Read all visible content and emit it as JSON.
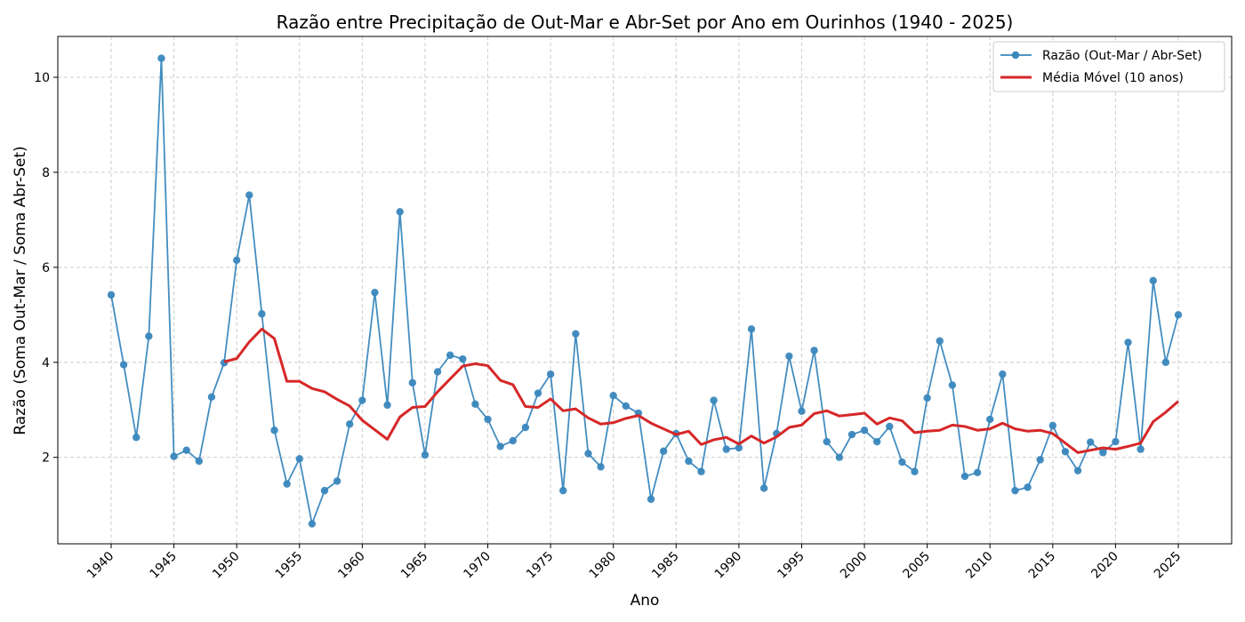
{
  "chart_data": {
    "type": "line",
    "title": "Razão entre Precipitação de Out-Mar e Abr-Set por Ano em Ourinhos (1940 - 2025)",
    "xlabel": "Ano",
    "ylabel": "Razão (Soma Out-Mar / Soma Abr-Set)",
    "xlim": [
      1935.75,
      2029.25
    ],
    "ylim": [
      0.18,
      10.86
    ],
    "x_ticks": [
      1940,
      1945,
      1950,
      1955,
      1960,
      1965,
      1970,
      1975,
      1980,
      1985,
      1990,
      1995,
      2000,
      2005,
      2010,
      2015,
      2020,
      2025
    ],
    "y_ticks": [
      2,
      4,
      6,
      8,
      10
    ],
    "grid": true,
    "legend_position": "top-right",
    "x": [
      1940,
      1941,
      1942,
      1943,
      1944,
      1945,
      1946,
      1947,
      1948,
      1949,
      1950,
      1951,
      1952,
      1953,
      1954,
      1955,
      1956,
      1957,
      1958,
      1959,
      1960,
      1961,
      1962,
      1963,
      1964,
      1965,
      1966,
      1967,
      1968,
      1969,
      1970,
      1971,
      1972,
      1973,
      1974,
      1975,
      1976,
      1977,
      1978,
      1979,
      1980,
      1981,
      1982,
      1983,
      1984,
      1985,
      1986,
      1987,
      1988,
      1989,
      1990,
      1991,
      1992,
      1993,
      1994,
      1995,
      1996,
      1997,
      1998,
      1999,
      2000,
      2001,
      2002,
      2003,
      2004,
      2005,
      2006,
      2007,
      2008,
      2009,
      2010,
      2011,
      2012,
      2013,
      2014,
      2015,
      2016,
      2017,
      2018,
      2019,
      2020,
      2021,
      2022,
      2023,
      2024,
      2025
    ],
    "series": [
      {
        "name": "Razão (Out-Mar / Abr-Set)",
        "color": "#3a87bd",
        "marker": "circle",
        "values": [
          5.42,
          3.95,
          2.42,
          4.55,
          10.4,
          2.02,
          2.15,
          1.92,
          3.27,
          3.99,
          6.15,
          7.52,
          5.02,
          2.57,
          1.44,
          1.97,
          0.6,
          1.3,
          1.5,
          2.7,
          3.2,
          5.47,
          3.1,
          7.17,
          3.57,
          2.05,
          3.8,
          4.15,
          4.07,
          3.12,
          2.8,
          2.23,
          2.35,
          2.63,
          3.35,
          3.75,
          1.3,
          4.6,
          2.08,
          1.8,
          3.3,
          3.08,
          2.93,
          1.12,
          2.13,
          2.5,
          1.92,
          1.7,
          3.2,
          2.17,
          2.2,
          4.7,
          1.35,
          2.5,
          4.13,
          2.97,
          4.25,
          2.33,
          2.0,
          2.48,
          2.57,
          2.33,
          2.65,
          1.9,
          1.7,
          3.25,
          4.45,
          3.52,
          1.6,
          1.68,
          2.8,
          3.75,
          1.3,
          1.37,
          1.95,
          2.67,
          2.12,
          1.72,
          2.32,
          2.1,
          2.33,
          4.42,
          2.17,
          5.72,
          4.0,
          5.0
        ]
      },
      {
        "name": "Média Móvel (10 anos)",
        "color": "#d62728",
        "x": [
          1949,
          1950,
          1951,
          1952,
          1953,
          1954,
          1955,
          1956,
          1957,
          1958,
          1959,
          1960,
          1961,
          1962,
          1963,
          1964,
          1965,
          1966,
          1967,
          1968,
          1969,
          1970,
          1971,
          1972,
          1973,
          1974,
          1975,
          1976,
          1977,
          1978,
          1979,
          1980,
          1981,
          1982,
          1983,
          1984,
          1985,
          1986,
          1987,
          1988,
          1989,
          1990,
          1991,
          1992,
          1993,
          1994,
          1995,
          1996,
          1997,
          1998,
          1999,
          2000,
          2001,
          2002,
          2003,
          2004,
          2005,
          2006,
          2007,
          2008,
          2009,
          2010,
          2011,
          2012,
          2013,
          2014,
          2015,
          2016,
          2017,
          2018,
          2019,
          2020,
          2021,
          2022,
          2023,
          2024,
          2025
        ],
        "values": [
          4.01,
          4.08,
          4.43,
          4.7,
          4.5,
          3.6,
          3.6,
          3.45,
          3.38,
          3.22,
          3.08,
          2.78,
          2.58,
          2.38,
          2.85,
          3.05,
          3.07,
          3.38,
          3.65,
          3.92,
          3.97,
          3.93,
          3.62,
          3.53,
          3.07,
          3.05,
          3.23,
          2.98,
          3.02,
          2.83,
          2.7,
          2.73,
          2.82,
          2.88,
          2.72,
          2.6,
          2.48,
          2.55,
          2.27,
          2.37,
          2.42,
          2.28,
          2.45,
          2.3,
          2.43,
          2.63,
          2.68,
          2.92,
          2.98,
          2.87,
          2.9,
          2.93,
          2.7,
          2.83,
          2.77,
          2.52,
          2.55,
          2.57,
          2.68,
          2.65,
          2.57,
          2.6,
          2.72,
          2.6,
          2.55,
          2.57,
          2.5,
          2.3,
          2.1,
          2.15,
          2.2,
          2.17,
          2.23,
          2.3,
          2.75,
          2.95,
          3.18
        ]
      }
    ]
  }
}
